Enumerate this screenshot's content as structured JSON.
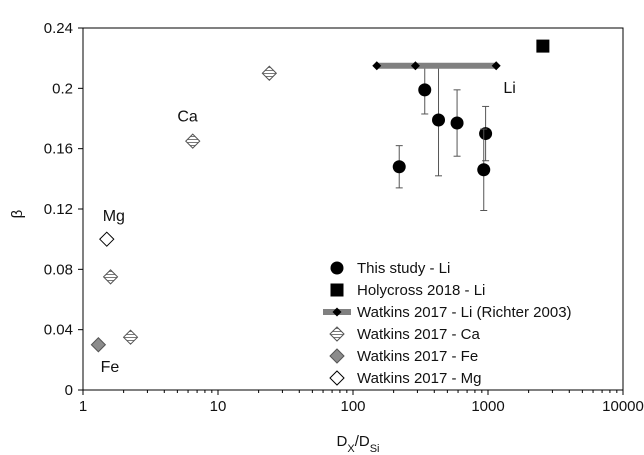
{
  "chart_data": {
    "type": "scatter",
    "xscale": "log",
    "xlim": [
      1,
      10000
    ],
    "ylim": [
      0,
      0.24
    ],
    "xticks": [
      "1",
      "10",
      "100",
      "1000",
      "10000"
    ],
    "yticks": [
      "0",
      "0.04",
      "0.08",
      "0.12",
      "0.16",
      "0.2",
      "0.24"
    ],
    "ytick_values": [
      0,
      0.04,
      0.08,
      0.12,
      0.16,
      0.2,
      0.24
    ],
    "xtick_values": [
      1,
      10,
      100,
      1000,
      10000
    ],
    "ylabel": "β",
    "xlabel_main": "D",
    "xlabel_sub1": "X",
    "xlabel_mid": "/D",
    "xlabel_sub2": "Si",
    "grid": false,
    "legend_position": "bottom-right",
    "annotations": [
      {
        "text": "Li",
        "x": 1300,
        "y": 0.197
      },
      {
        "text": "Ca",
        "x": 5.0,
        "y": 0.178
      },
      {
        "text": "Mg",
        "x": 1.4,
        "y": 0.112
      },
      {
        "text": "Fe",
        "x": 1.35,
        "y": 0.012
      }
    ],
    "series": [
      {
        "name": "This study - Li",
        "marker": "circle",
        "color": "#000000",
        "points": [
          {
            "x": 220,
            "y": 0.148,
            "err_low": 0.134,
            "err_high": 0.162
          },
          {
            "x": 340,
            "y": 0.199,
            "err_low": 0.183,
            "err_high": 0.215
          },
          {
            "x": 430,
            "y": 0.179,
            "err_low": 0.142,
            "err_high": 0.216
          },
          {
            "x": 590,
            "y": 0.177,
            "err_low": 0.155,
            "err_high": 0.199
          },
          {
            "x": 960,
            "y": 0.17,
            "err_low": 0.152,
            "err_high": 0.188
          },
          {
            "x": 930,
            "y": 0.146,
            "err_low": 0.119,
            "err_high": 0.173
          }
        ]
      },
      {
        "name": "Holycross 2018 - Li",
        "marker": "square",
        "color": "#000000",
        "points": [
          {
            "x": 2550,
            "y": 0.228
          }
        ]
      },
      {
        "name": "Watkins 2017 - Li (Richter 2003)",
        "marker": "diamond-line",
        "color": "#000000",
        "line_color": "#808080",
        "points": [
          {
            "x": 150,
            "y": 0.215
          },
          {
            "x": 290,
            "y": 0.215
          },
          {
            "x": 1150,
            "y": 0.215
          }
        ]
      },
      {
        "name": "Watkins 2017 - Ca",
        "marker": "diamond-striped",
        "color": "#606060",
        "points": [
          {
            "x": 1.6,
            "y": 0.075
          },
          {
            "x": 2.25,
            "y": 0.035
          },
          {
            "x": 6.5,
            "y": 0.165
          },
          {
            "x": 24,
            "y": 0.21
          }
        ]
      },
      {
        "name": "Watkins 2017 - Fe",
        "marker": "diamond-gray",
        "color": "#909090",
        "points": [
          {
            "x": 1.3,
            "y": 0.03
          }
        ]
      },
      {
        "name": "Watkins 2017 - Mg",
        "marker": "diamond-open",
        "color": "#000000",
        "points": [
          {
            "x": 1.5,
            "y": 0.1
          }
        ]
      }
    ]
  }
}
